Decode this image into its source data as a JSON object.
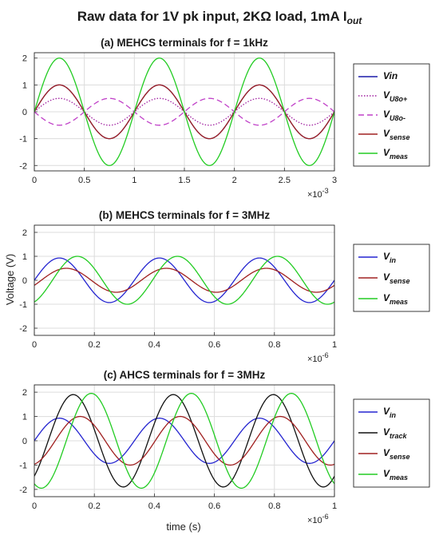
{
  "figure": {
    "title": "Raw data for 1V pk input, 2KΩ load, 1mA I",
    "title_sub": "out",
    "ylabel": "Voltage (V)",
    "xlabel": "time (s)"
  },
  "chart_data": [
    {
      "type": "line",
      "title": "(a) MEHCS terminals for f = 1kHz",
      "xlim": [
        0,
        0.003
      ],
      "ylim": [
        -2.2,
        2.2
      ],
      "xticks": [
        "0",
        "0.5",
        "1",
        "1.5",
        "2",
        "2.5",
        "3"
      ],
      "x_exponent": "×10",
      "x_exponent_power": "-3",
      "yticks": [
        "2",
        "1",
        "0",
        "-1",
        "-2"
      ],
      "grid": true,
      "legend": "right",
      "series": [
        {
          "name": "Vin",
          "name_main": "Vin",
          "name_sub": "",
          "color": "#1a1aa8",
          "dash": "",
          "amplitude": 1.0,
          "frequency_hz": 1000,
          "phase_deg": 0
        },
        {
          "name": "VU8o+",
          "name_main": "V",
          "name_sub": "U8o+",
          "color": "#a020a0",
          "dash": "1.5,2",
          "amplitude": 0.5,
          "frequency_hz": 1000,
          "phase_deg": 0
        },
        {
          "name": "VU8o-",
          "name_main": "V",
          "name_sub": "U8o-",
          "color": "#c040c8",
          "dash": "7,4",
          "amplitude": -0.5,
          "frequency_hz": 1000,
          "phase_deg": 0
        },
        {
          "name": "Vsense",
          "name_main": "V",
          "name_sub": "sense",
          "color": "#a02020",
          "dash": "",
          "amplitude": 1.0,
          "frequency_hz": 1000,
          "phase_deg": 0
        },
        {
          "name": "Vmeas",
          "name_main": "V",
          "name_sub": "meas",
          "color": "#22cc22",
          "dash": "",
          "amplitude": 2.0,
          "frequency_hz": 1000,
          "phase_deg": 0
        }
      ]
    },
    {
      "type": "line",
      "title": "(b) MEHCS terminals for  f = 3MHz",
      "xlim": [
        0,
        1e-06
      ],
      "ylim": [
        -2.3,
        2.3
      ],
      "xticks": [
        "0",
        "0.2",
        "0.4",
        "0.6",
        "0.8",
        "1"
      ],
      "x_exponent": "×10",
      "x_exponent_power": "-6",
      "yticks": [
        "2",
        "1",
        "0",
        "-1",
        "-2"
      ],
      "grid": true,
      "legend": "right",
      "series": [
        {
          "name": "Vin",
          "name_main": "V",
          "name_sub": "in",
          "color": "#2424d0",
          "dash": "",
          "amplitude": 0.93,
          "frequency_hz": 3000000,
          "phase_deg": 0
        },
        {
          "name": "Vsense",
          "name_main": "V",
          "name_sub": "sense",
          "color": "#a02020",
          "dash": "",
          "amplitude": 0.5,
          "frequency_hz": 3000000,
          "phase_deg": -25
        },
        {
          "name": "Vmeas",
          "name_main": "V",
          "name_sub": "meas",
          "color": "#22cc22",
          "dash": "",
          "amplitude": 1.0,
          "frequency_hz": 3000000,
          "phase_deg": -65
        }
      ]
    },
    {
      "type": "line",
      "title": "(c) AHCS terminals for  f = 3MHz",
      "xlim": [
        0,
        1e-06
      ],
      "ylim": [
        -2.3,
        2.3
      ],
      "xticks": [
        "0",
        "0.2",
        "0.4",
        "0.6",
        "0.8",
        "1"
      ],
      "x_exponent": "×10",
      "x_exponent_power": "-6",
      "yticks": [
        "2",
        "1",
        "0",
        "-1",
        "-2"
      ],
      "grid": true,
      "legend": "right",
      "series": [
        {
          "name": "Vin",
          "name_main": "V",
          "name_sub": "in",
          "color": "#2424d0",
          "dash": "",
          "amplitude": 0.93,
          "frequency_hz": 3000000,
          "phase_deg": 0
        },
        {
          "name": "Vtrack",
          "name_main": "V",
          "name_sub": "track",
          "color": "#111111",
          "dash": "",
          "amplitude": 1.9,
          "frequency_hz": 3000000,
          "phase_deg": -50
        },
        {
          "name": "Vsense",
          "name_main": "V",
          "name_sub": "sense",
          "color": "#a02020",
          "dash": "",
          "amplitude": 1.0,
          "frequency_hz": 3000000,
          "phase_deg": -75
        },
        {
          "name": "Vmeas",
          "name_main": "V",
          "name_sub": "meas",
          "color": "#22cc22",
          "dash": "",
          "amplitude": 1.95,
          "frequency_hz": 3000000,
          "phase_deg": -115
        }
      ]
    }
  ]
}
